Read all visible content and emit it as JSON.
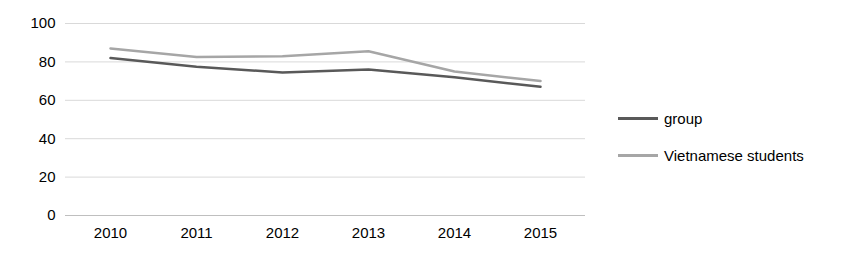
{
  "chart_data": {
    "type": "line",
    "categories": [
      "2010",
      "2011",
      "2012",
      "2013",
      "2014",
      "2015"
    ],
    "series": [
      {
        "name": "group",
        "color": "#595959",
        "values": [
          82,
          77.5,
          74.5,
          76,
          72,
          67
        ]
      },
      {
        "name": "Vietnamese students",
        "color": "#a6a6a6",
        "values": [
          87,
          82.5,
          83,
          85.5,
          75,
          70
        ]
      }
    ],
    "ylim": [
      0,
      100
    ],
    "yticks": [
      0,
      20,
      40,
      60,
      80,
      100
    ],
    "grid": true,
    "legend": "right"
  }
}
